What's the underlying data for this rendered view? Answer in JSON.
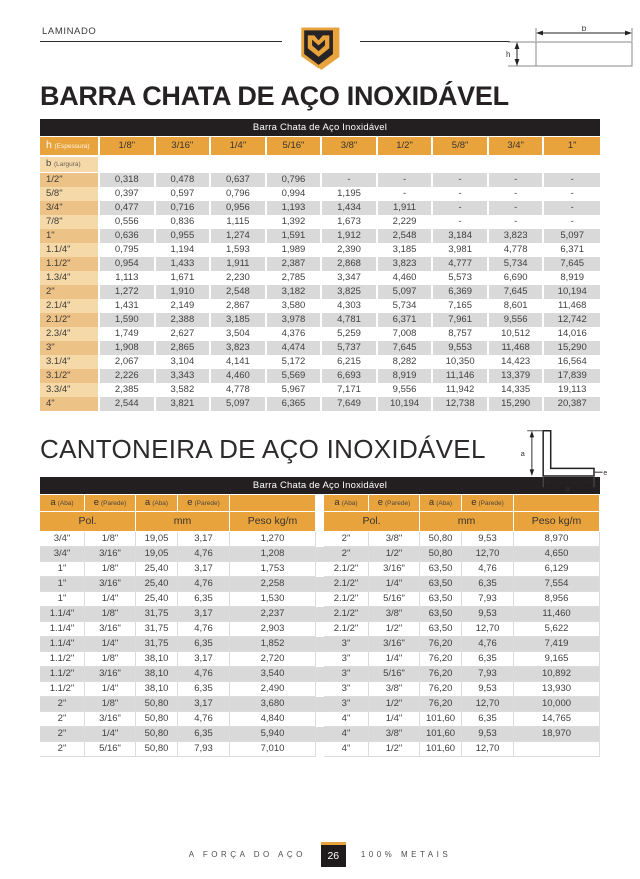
{
  "page": {
    "section_label": "LAMINADO",
    "footer": {
      "left": "A FORÇA DO AÇO",
      "page_number": "26",
      "right": "100% METAIS"
    }
  },
  "colors": {
    "gold": "#E8A33C",
    "tan_light": "#F5D9A9",
    "tan_dark": "#ECC287",
    "bar_black": "#231F20",
    "row_gray": "#D9D9D9"
  },
  "flat_bar": {
    "title": "BARRA CHATA DE AÇO INOXIDÁVEL",
    "table_title": "Barra Chata de Aço Inoxidável",
    "corner_label": "h",
    "corner_sub": "(Espessura)",
    "row_label": "b",
    "row_sub": "(Largura)",
    "diagram": {
      "width_label": "b",
      "height_label": "h"
    },
    "columns": [
      "1/8\"",
      "3/16\"",
      "1/4\"",
      "5/16\"",
      "3/8\"",
      "1/2\"",
      "5/8\"",
      "3/4\"",
      "1\""
    ],
    "rows": [
      {
        "label": "1/2\"",
        "values": [
          "0,318",
          "0,478",
          "0,637",
          "0,796",
          "-",
          "-",
          "-",
          "-",
          "-"
        ]
      },
      {
        "label": "5/8\"",
        "values": [
          "0,397",
          "0,597",
          "0,796",
          "0,994",
          "1,195",
          "-",
          "-",
          "-",
          "-"
        ]
      },
      {
        "label": "3/4\"",
        "values": [
          "0,477",
          "0,716",
          "0,956",
          "1,193",
          "1,434",
          "1,911",
          "-",
          "-",
          "-"
        ]
      },
      {
        "label": "7/8\"",
        "values": [
          "0,556",
          "0,836",
          "1,115",
          "1,392",
          "1,673",
          "2,229",
          "-",
          "-",
          "-"
        ]
      },
      {
        "label": "1\"",
        "values": [
          "0,636",
          "0,955",
          "1,274",
          "1,591",
          "1,912",
          "2,548",
          "3,184",
          "3,823",
          "5,097"
        ]
      },
      {
        "label": "1.1/4\"",
        "values": [
          "0,795",
          "1,194",
          "1,593",
          "1,989",
          "2,390",
          "3,185",
          "3,981",
          "4,778",
          "6,371"
        ]
      },
      {
        "label": "1.1/2\"",
        "values": [
          "0,954",
          "1,433",
          "1,911",
          "2,387",
          "2,868",
          "3,823",
          "4,777",
          "5,734",
          "7,645"
        ]
      },
      {
        "label": "1.3/4\"",
        "values": [
          "1,113",
          "1,671",
          "2,230",
          "2,785",
          "3,347",
          "4,460",
          "5,573",
          "6,690",
          "8,919"
        ]
      },
      {
        "label": "2\"",
        "values": [
          "1,272",
          "1,910",
          "2,548",
          "3,182",
          "3,825",
          "5,097",
          "6,369",
          "7,645",
          "10,194"
        ]
      },
      {
        "label": "2.1/4\"",
        "values": [
          "1,431",
          "2,149",
          "2,867",
          "3,580",
          "4,303",
          "5,734",
          "7,165",
          "8,601",
          "11,468"
        ]
      },
      {
        "label": "2.1/2\"",
        "values": [
          "1,590",
          "2,388",
          "3,185",
          "3,978",
          "4,781",
          "6,371",
          "7,961",
          "9,556",
          "12,742"
        ]
      },
      {
        "label": "2.3/4\"",
        "values": [
          "1,749",
          "2,627",
          "3,504",
          "4,376",
          "5,259",
          "7,008",
          "8,757",
          "10,512",
          "14,016"
        ]
      },
      {
        "label": "3\"",
        "values": [
          "1,908",
          "2,865",
          "3,823",
          "4,474",
          "5,737",
          "7,645",
          "9,553",
          "11,468",
          "15,290"
        ]
      },
      {
        "label": "3.1/4\"",
        "values": [
          "2,067",
          "3,104",
          "4,141",
          "5,172",
          "6,215",
          "8,282",
          "10,350",
          "14,423",
          "16,564"
        ]
      },
      {
        "label": "3.1/2\"",
        "values": [
          "2,226",
          "3,343",
          "4,460",
          "5,569",
          "6,693",
          "8,919",
          "11,146",
          "13,379",
          "17,839"
        ]
      },
      {
        "label": "3.3/4\"",
        "values": [
          "2,385",
          "3,582",
          "4,778",
          "5,967",
          "7,171",
          "9,556",
          "11,942",
          "14,335",
          "19,113"
        ]
      },
      {
        "label": "4\"",
        "values": [
          "2,544",
          "3,821",
          "5,097",
          "6,365",
          "7,649",
          "10,194",
          "12,738",
          "15,290",
          "20,387"
        ]
      }
    ]
  },
  "angle": {
    "title": "CANTONEIRA DE AÇO INOXIDÁVEL",
    "table_title": "Barra Chata de Aço Inoxidável",
    "diagram": {
      "leg_label": "a",
      "thickness_label": "e"
    },
    "header": {
      "a_label": "a",
      "a_sub": "(Aba)",
      "e_label": "e",
      "e_sub": "(Parede)",
      "pol": "Pol.",
      "mm": "mm",
      "peso": "Peso kg/m"
    },
    "left_rows": [
      [
        "3/4\"",
        "1/8\"",
        "19,05",
        "3,17",
        "1,270"
      ],
      [
        "3/4\"",
        "3/16\"",
        "19,05",
        "4,76",
        "1,208"
      ],
      [
        "1\"",
        "1/8\"",
        "25,40",
        "3,17",
        "1,753"
      ],
      [
        "1\"",
        "3/16\"",
        "25,40",
        "4,76",
        "2,258"
      ],
      [
        "1\"",
        "1/4\"",
        "25,40",
        "6,35",
        "1,530"
      ],
      [
        "1.1/4\"",
        "1/8\"",
        "31,75",
        "3,17",
        "2,237"
      ],
      [
        "1.1/4\"",
        "3/16\"",
        "31,75",
        "4,76",
        "2,903"
      ],
      [
        "1.1/4\"",
        "1/4\"",
        "31,75",
        "6,35",
        "1,852"
      ],
      [
        "1.1/2\"",
        "1/8\"",
        "38,10",
        "3,17",
        "2,720"
      ],
      [
        "1.1/2\"",
        "3/16\"",
        "38,10",
        "4,76",
        "3,540"
      ],
      [
        "1.1/2\"",
        "1/4\"",
        "38,10",
        "6,35",
        "2,490"
      ],
      [
        "2\"",
        "1/8\"",
        "50,80",
        "3,17",
        "3,680"
      ],
      [
        "2\"",
        "3/16\"",
        "50,80",
        "4,76",
        "4,840"
      ],
      [
        "2\"",
        "1/4\"",
        "50,80",
        "6,35",
        "5,940"
      ],
      [
        "2\"",
        "5/16\"",
        "50,80",
        "7,93",
        "7,010"
      ]
    ],
    "right_rows": [
      [
        "2\"",
        "3/8\"",
        "50,80",
        "9,53",
        "8,970"
      ],
      [
        "2\"",
        "1/2\"",
        "50,80",
        "12,70",
        "4,650"
      ],
      [
        "2.1/2\"",
        "3/16\"",
        "63,50",
        "4,76",
        "6,129"
      ],
      [
        "2.1/2\"",
        "1/4\"",
        "63,50",
        "6,35",
        "7,554"
      ],
      [
        "2.1/2\"",
        "5/16\"",
        "63,50",
        "7,93",
        "8,956"
      ],
      [
        "2.1/2\"",
        "3/8\"",
        "63,50",
        "9,53",
        "11,460"
      ],
      [
        "2.1/2\"",
        "1/2\"",
        "63,50",
        "12,70",
        "5,622"
      ],
      [
        "3\"",
        "3/16\"",
        "76,20",
        "4,76",
        "7,419"
      ],
      [
        "3\"",
        "1/4\"",
        "76,20",
        "6,35",
        "9,165"
      ],
      [
        "3\"",
        "5/16\"",
        "76,20",
        "7,93",
        "10,892"
      ],
      [
        "3\"",
        "3/8\"",
        "76,20",
        "9,53",
        "13,930"
      ],
      [
        "3\"",
        "1/2\"",
        "76,20",
        "12,70",
        "10,000"
      ],
      [
        "4\"",
        "1/4\"",
        "101,60",
        "6,35",
        "14,765"
      ],
      [
        "4\"",
        "3/8\"",
        "101,60",
        "9,53",
        "18,970"
      ],
      [
        "4\"",
        "1/2\"",
        "101,60",
        "12,70",
        ""
      ]
    ]
  }
}
